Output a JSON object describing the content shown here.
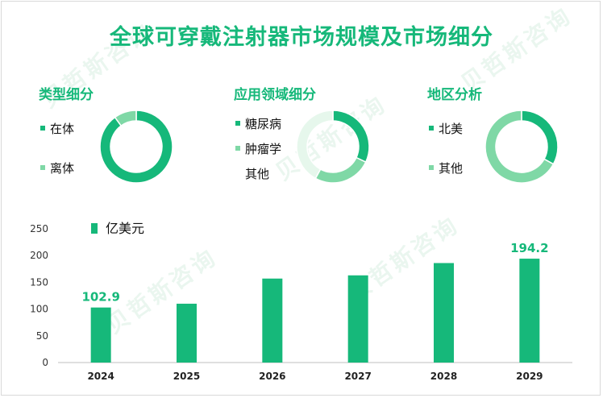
{
  "title": "全球可穿戴注射器市场规模及市场细分",
  "watermark": "贝哲斯咨询",
  "colors": {
    "dark": "#16b87a",
    "light": "#7fd8a6",
    "pale": "#e6f7ec",
    "text": "#111111"
  },
  "donuts": [
    {
      "title": "类型细分",
      "legend": [
        {
          "label": "在体",
          "color": "#16b87a"
        },
        {
          "label": "离体",
          "color": "#7fd8a6"
        }
      ],
      "slices": [
        {
          "value": 90,
          "color": "#16b87a"
        },
        {
          "value": 10,
          "color": "#7fd8a6"
        }
      ]
    },
    {
      "title": "应用领域细分",
      "legend": [
        {
          "label": "糖尿病",
          "color": "#16b87a"
        },
        {
          "label": "肿瘤学",
          "color": "#7fd8a6"
        },
        {
          "label": "其他",
          "color": ""
        }
      ],
      "slices": [
        {
          "value": 32,
          "color": "#16b87a"
        },
        {
          "value": 26,
          "color": "#7fd8a6"
        },
        {
          "value": 42,
          "color": "#e6f7ec"
        }
      ]
    },
    {
      "title": "地区分析",
      "legend": [
        {
          "label": "北美",
          "color": "#16b87a"
        },
        {
          "label": "其他",
          "color": "#7fd8a6"
        }
      ],
      "slices": [
        {
          "value": 33,
          "color": "#16b87a"
        },
        {
          "value": 67,
          "color": "#7fd8a6"
        }
      ]
    }
  ],
  "chart_data": {
    "type": "bar",
    "categories": [
      "2024",
      "2025",
      "2026",
      "2027",
      "2028",
      "2029"
    ],
    "series": [
      {
        "name": "亿美元",
        "values": [
          102.9,
          110,
          157,
          163,
          186,
          194.2
        ]
      }
    ],
    "data_labels": {
      "2024": "102.9",
      "2029": "194.2"
    },
    "ylim": [
      0,
      250
    ],
    "yticks": [
      0,
      50,
      100,
      150,
      200,
      250
    ],
    "grid": false,
    "legend_position": "top-left",
    "color": "#16b87a"
  }
}
